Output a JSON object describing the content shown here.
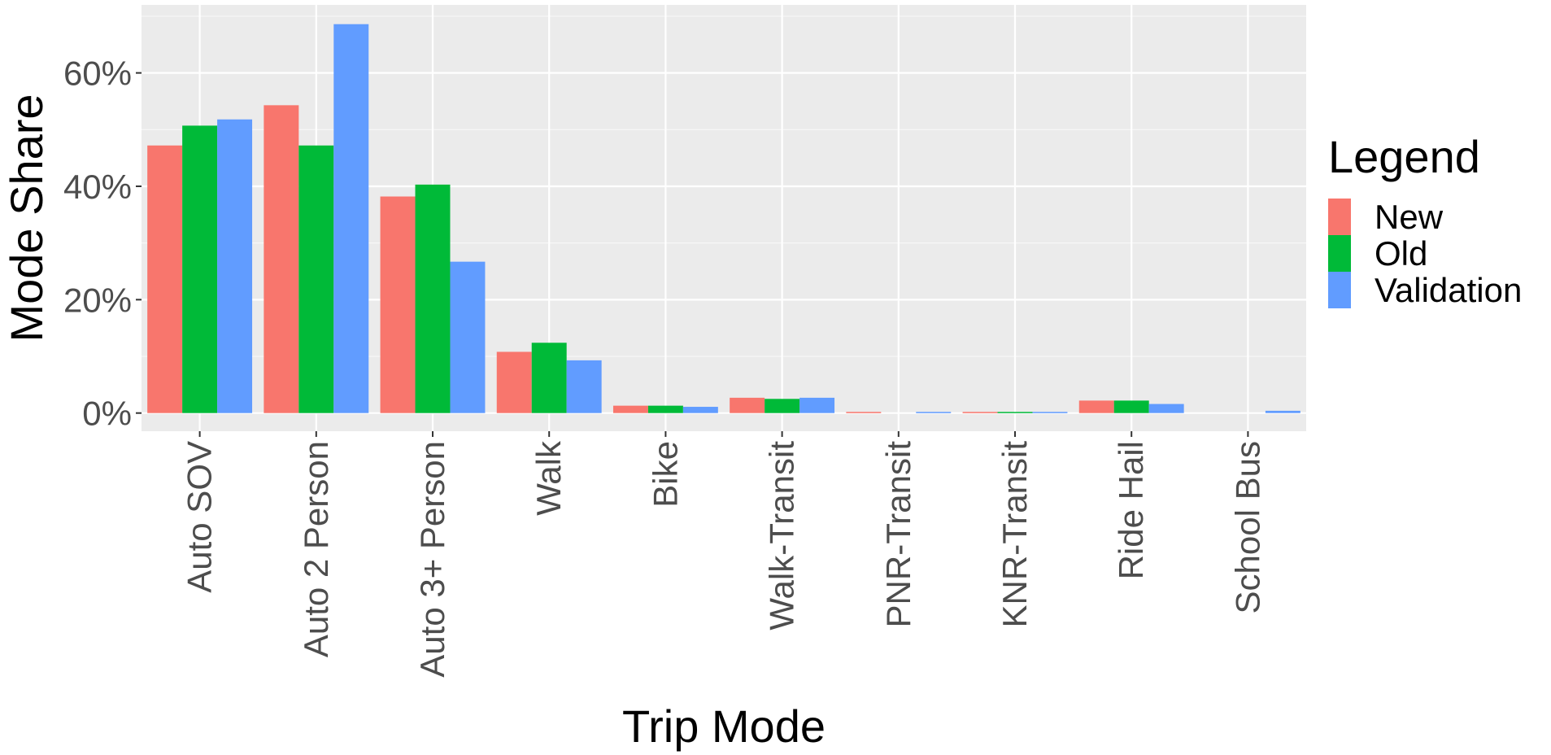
{
  "chart_data": {
    "type": "bar",
    "title": "",
    "xlabel": "Trip Mode",
    "ylabel": "Mode Share",
    "categories": [
      "Auto SOV",
      "Auto 2 Person",
      "Auto 3+ Person",
      "Walk",
      "Bike",
      "Walk-Transit",
      "PNR-Transit",
      "KNR-Transit",
      "Ride Hail",
      "School Bus"
    ],
    "series": [
      {
        "name": "New",
        "color": "#F8766D",
        "values": [
          0.472,
          0.543,
          0.382,
          0.108,
          0.013,
          0.027,
          0.002,
          0.002,
          0.022,
          0.0
        ]
      },
      {
        "name": "Old",
        "color": "#00BA38",
        "values": [
          0.507,
          0.472,
          0.403,
          0.124,
          0.013,
          0.025,
          0.0,
          0.002,
          0.022,
          0.0
        ]
      },
      {
        "name": "Validation",
        "color": "#619CFF",
        "values": [
          0.518,
          0.686,
          0.267,
          0.093,
          0.011,
          0.027,
          0.002,
          0.002,
          0.016,
          0.004
        ]
      }
    ],
    "ylim": [
      -0.032,
      0.72
    ],
    "yticks": [
      0,
      0.2,
      0.4,
      0.6
    ],
    "ytick_labels": [
      "0%",
      "20%",
      "40%",
      "60%"
    ],
    "grid": true,
    "legend": {
      "title": "Legend",
      "placement": "right"
    }
  }
}
